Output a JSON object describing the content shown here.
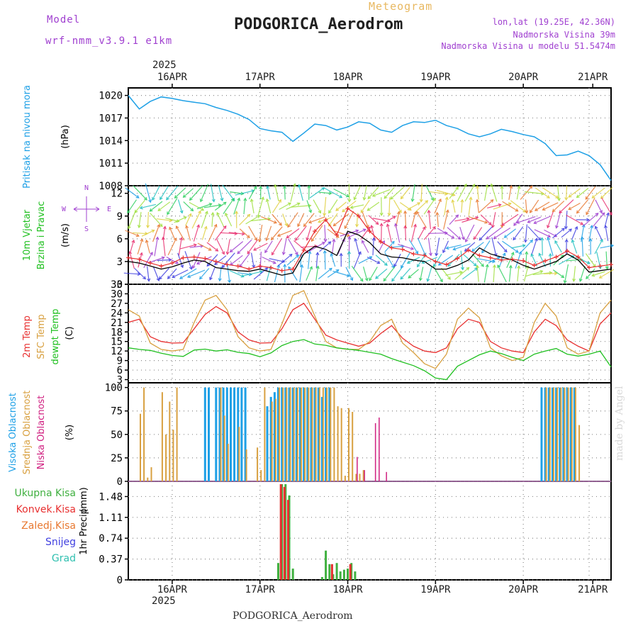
{
  "header": {
    "model_label": "Model",
    "model_name": "wrf-nmm_v3.9.1 e1km",
    "meteogram_label": "Meteogram",
    "station_title": "PODGORICA_Aerodrom",
    "lonlat": "lon,lat (19.25E, 42.36N)",
    "altitude": "Nadmorska Visina 39m",
    "model_altitude": "Nadmorska Visina u modelu 51.5474m",
    "year": "2025"
  },
  "footer": {
    "station": "PODGORICA_Aerodrom",
    "year": "2025",
    "madeby": "made by Angel"
  },
  "colors": {
    "pressure": "#1ea0e6",
    "wind_black": "#000000",
    "wind_red": "#e83030",
    "t2m": "#e83030",
    "sfc": "#d8a040",
    "dewpt": "#20c020",
    "high_cloud": "#1ea0e6",
    "mid_cloud": "#d8a040",
    "low_cloud": "#d02080",
    "total_rain": "#40b040",
    "conv_rain": "#e83030",
    "purple": "#a040d0",
    "grid": "#888888"
  },
  "chart_data": [
    {
      "type": "line",
      "panel": "pressure",
      "ylabel_name": "Pritisak na nivou mora",
      "ylabel_unit": "(hPa)",
      "yticks": [
        1008,
        1011,
        1014,
        1017,
        1020
      ],
      "ylim": [
        1008,
        1021
      ],
      "xlabels": [
        "16APR",
        "17APR",
        "18APR",
        "19APR",
        "20APR",
        "21APR"
      ],
      "xlim": [
        0,
        132
      ],
      "x": [
        0,
        3,
        6,
        9,
        12,
        15,
        18,
        21,
        24,
        27,
        30,
        33,
        36,
        39,
        42,
        45,
        48,
        51,
        54,
        57,
        60,
        63,
        66,
        69,
        72,
        75,
        78,
        81,
        84,
        87,
        90,
        93,
        96,
        99,
        102,
        105,
        108,
        111,
        114,
        117,
        120,
        123,
        126,
        129,
        132
      ],
      "series": [
        {
          "name": "",
          "values": [
            1020.0,
            1018.2,
            1019.2,
            1019.8,
            1019.6,
            1019.3,
            1019.1,
            1018.9,
            1018.4,
            1018.0,
            1017.5,
            1016.8,
            1015.6,
            1015.3,
            1015.1,
            1013.9,
            1015.0,
            1016.2,
            1016.0,
            1015.4,
            1015.8,
            1016.5,
            1016.3,
            1015.4,
            1015.1,
            1016.0,
            1016.5,
            1016.4,
            1016.7,
            1016.0,
            1015.6,
            1014.9,
            1014.5,
            1014.9,
            1015.5,
            1015.2,
            1014.8,
            1014.5,
            1013.6,
            1012.0,
            1012.1,
            1012.6,
            1012.0,
            1010.8,
            1008.7
          ]
        }
      ]
    },
    {
      "type": "line",
      "panel": "wind",
      "ylabel_name": "10m Vjetar",
      "ylabel_name2": "Brzina i Pravac",
      "ylabel_unit": "(m/s)",
      "compass_n": "N",
      "compass_s": "S",
      "compass_w": "W",
      "compass_e": "E",
      "yticks": [
        0,
        3,
        6,
        9,
        12
      ],
      "ylim": [
        0,
        13
      ],
      "xlim": [
        0,
        132
      ],
      "x": [
        0,
        3,
        6,
        9,
        12,
        15,
        18,
        21,
        24,
        27,
        30,
        33,
        36,
        39,
        42,
        45,
        48,
        51,
        54,
        57,
        60,
        63,
        66,
        69,
        72,
        75,
        78,
        81,
        84,
        87,
        90,
        93,
        96,
        99,
        102,
        105,
        108,
        111,
        114,
        117,
        120,
        123,
        126,
        129,
        132
      ],
      "series": [
        {
          "name": "",
          "values": [
            3.0,
            2.8,
            2.4,
            2.0,
            2.3,
            2.8,
            3.2,
            3.0,
            2.2,
            2.0,
            1.8,
            1.7,
            2.0,
            1.6,
            1.2,
            1.5,
            4.0,
            5.0,
            4.6,
            3.8,
            7.0,
            6.5,
            5.5,
            4.0,
            3.6,
            3.5,
            3.2,
            3.0,
            2.0,
            2.0,
            2.5,
            3.2,
            4.8,
            4.0,
            3.6,
            3.2,
            2.5,
            2.0,
            2.5,
            3.0,
            4.0,
            3.2,
            1.6,
            1.8,
            2.0
          ]
        },
        {
          "name": "",
          "values": [
            3.5,
            3.3,
            2.8,
            2.4,
            2.8,
            3.5,
            3.6,
            3.4,
            3.0,
            2.6,
            2.4,
            2.0,
            2.4,
            2.2,
            1.8,
            2.0,
            4.5,
            7.0,
            8.5,
            6.5,
            10.0,
            9.0,
            7.0,
            5.6,
            4.8,
            4.6,
            4.0,
            3.8,
            3.0,
            2.6,
            3.4,
            4.5,
            3.8,
            3.5,
            3.2,
            3.3,
            3.1,
            2.5,
            3.1,
            3.6,
            4.4,
            3.6,
            2.2,
            2.4,
            2.6
          ]
        }
      ]
    },
    {
      "type": "line",
      "panel": "temperature",
      "ylabel_name": "2m Temp",
      "ylabel_name2": "SFC Temp",
      "ylabel_name3": "dewpt Temp",
      "ylabel_unit": "(C)",
      "yticks": [
        3,
        6,
        9,
        12,
        15,
        18,
        21,
        24,
        27,
        30,
        33
      ],
      "ylim": [
        2,
        33
      ],
      "xlim": [
        0,
        132
      ],
      "x": [
        0,
        3,
        6,
        9,
        12,
        15,
        18,
        21,
        24,
        27,
        30,
        33,
        36,
        39,
        42,
        45,
        48,
        51,
        54,
        57,
        60,
        63,
        66,
        69,
        72,
        75,
        78,
        81,
        84,
        87,
        90,
        93,
        96,
        99,
        102,
        105,
        108,
        111,
        114,
        117,
        120,
        123,
        126,
        129,
        132
      ],
      "series": [
        {
          "name": "2m Temp",
          "values": [
            21.0,
            22.0,
            16.5,
            15.0,
            14.5,
            14.6,
            19.0,
            23.5,
            26.0,
            24.0,
            18.0,
            15.5,
            14.5,
            14.6,
            19.0,
            25.0,
            27.0,
            22.0,
            17.0,
            15.5,
            14.5,
            13.5,
            14.5,
            17.5,
            20.0,
            16.0,
            13.5,
            12.0,
            11.5,
            13.0,
            19.0,
            22.0,
            21.0,
            15.0,
            13.0,
            12.0,
            11.5,
            18.0,
            22.0,
            20.0,
            15.5,
            13.5,
            12.0,
            20.5,
            24.0
          ]
        },
        {
          "name": "SFC Temp",
          "values": [
            25.0,
            23.0,
            14.5,
            12.5,
            12.0,
            12.5,
            21.0,
            28.0,
            29.5,
            25.0,
            16.5,
            13.0,
            12.0,
            12.5,
            20.5,
            29.5,
            31.0,
            23.0,
            15.0,
            13.0,
            12.5,
            12.5,
            15.0,
            20.0,
            22.0,
            14.5,
            11.5,
            8.0,
            6.5,
            11.0,
            22.0,
            25.5,
            22.5,
            13.0,
            10.5,
            9.0,
            10.0,
            21.0,
            27.0,
            23.0,
            13.0,
            11.0,
            12.0,
            24.0,
            28.0
          ]
        },
        {
          "name": "dewpt Temp",
          "values": [
            13.0,
            12.5,
            12.2,
            11.3,
            10.6,
            10.3,
            12.3,
            12.6,
            12.0,
            12.4,
            11.6,
            11.2,
            10.2,
            11.4,
            13.7,
            15.0,
            15.6,
            14.2,
            13.8,
            13.0,
            12.6,
            12.2,
            11.6,
            11.0,
            9.6,
            8.5,
            7.4,
            5.8,
            3.5,
            3.0,
            7.2,
            9.0,
            10.8,
            12.0,
            11.2,
            10.0,
            9.0,
            11.0,
            12.0,
            12.8,
            11.0,
            10.4,
            11.0,
            12.0,
            7.0
          ]
        }
      ]
    },
    {
      "type": "bar",
      "panel": "cloud",
      "ylabel_name": "Visoka Oblacnost",
      "ylabel_name2": "Srednja Oblacnost",
      "ylabel_name3": "Niska Oblacnost",
      "ylabel_unit": "(%)",
      "yticks": [
        0,
        25,
        50,
        75,
        100
      ],
      "ylim": [
        0,
        105
      ],
      "xlim": [
        0,
        132
      ],
      "series": [
        {
          "name": "Visoka Oblacnost",
          "x": [
            21,
            22,
            24,
            25,
            26,
            27,
            28,
            29,
            30,
            31,
            32,
            38,
            39,
            40,
            41,
            42,
            43,
            44,
            45,
            46,
            47,
            48,
            49,
            50,
            51,
            52,
            53,
            54,
            55,
            113,
            114,
            115,
            116,
            117,
            118,
            119,
            120,
            121,
            122
          ],
          "values": [
            100,
            100,
            100,
            100,
            100,
            100,
            100,
            100,
            100,
            100,
            100,
            80,
            90,
            95,
            100,
            100,
            100,
            100,
            100,
            100,
            100,
            100,
            100,
            100,
            100,
            100,
            90,
            100,
            100,
            100,
            100,
            100,
            100,
            100,
            100,
            100,
            100,
            100,
            100
          ]
        },
        {
          "name": "Srednja Oblacnost",
          "x": [
            3,
            4,
            5,
            6,
            9,
            10,
            11,
            12,
            13,
            25,
            26,
            27,
            30,
            32,
            35,
            36,
            37,
            39,
            40,
            41,
            42,
            43,
            44,
            45,
            46,
            47,
            48,
            49,
            50,
            51,
            52,
            53,
            54,
            55,
            56,
            57,
            58,
            59,
            60,
            61,
            62,
            63,
            64,
            114,
            115,
            116,
            117,
            118,
            119,
            120,
            121,
            122,
            123
          ],
          "values": [
            72,
            100,
            4,
            15,
            95,
            50,
            85,
            55,
            100,
            100,
            70,
            40,
            58,
            34,
            36,
            12,
            100,
            85,
            88,
            100,
            100,
            100,
            100,
            100,
            100,
            100,
            100,
            100,
            100,
            100,
            100,
            100,
            100,
            100,
            100,
            80,
            78,
            6,
            78,
            74,
            8,
            8,
            12,
            100,
            100,
            100,
            100,
            100,
            100,
            100,
            100,
            100,
            60
          ]
        },
        {
          "name": "Niska Oblacnost",
          "x": [
            62,
            64,
            67,
            68,
            70
          ],
          "values": [
            26,
            12,
            62,
            68,
            10
          ]
        }
      ]
    },
    {
      "type": "bar",
      "panel": "precip",
      "ylabel_name": "1hr Precip",
      "ylabel_unit": "(mm)",
      "legend": [
        "Ukupna Kisa",
        "Konvek.Kisa",
        "Zaledj.Kisa",
        "Snijeg",
        "Grad"
      ],
      "yticks": [
        0,
        0.37,
        0.74,
        1.11,
        1.48
      ],
      "ylim": [
        0,
        1.75
      ],
      "xlim": [
        0,
        132
      ],
      "series": [
        {
          "name": "Ukupna Kisa",
          "x": [
            41,
            42,
            43,
            44,
            45,
            53,
            54,
            55,
            56,
            57,
            58,
            59,
            60,
            61,
            62
          ],
          "values": [
            0.3,
            1.7,
            1.7,
            1.5,
            0.2,
            0.05,
            0.52,
            0.28,
            0.1,
            0.3,
            0.15,
            0.18,
            0.2,
            0.3,
            0.15
          ]
        },
        {
          "name": "Konvek.Kisa",
          "x": [
            42,
            43,
            44,
            56,
            61
          ],
          "values": [
            1.7,
            1.65,
            1.42,
            0.28,
            0.28
          ]
        }
      ]
    }
  ],
  "panel_labels": {
    "p1": [
      "Pritisak na nivou mora",
      "(hPa)"
    ],
    "p2": [
      "10m Vjetar",
      "Brzina i Pravac",
      "(m/s)"
    ],
    "p3": [
      "2m Temp",
      "SFC Temp",
      "dewpt Temp",
      "(C)"
    ],
    "p4": [
      "Visoka Oblacnost",
      "Srednja Oblacnost",
      "Niska Oblacnost",
      "(%)"
    ],
    "p5": [
      "1hr Precip",
      "(mm)"
    ]
  },
  "precip_legend": [
    "Ukupna Kisa",
    "Konvek.Kisa",
    "Zaledj.Kisa",
    "Snijeg",
    "Grad"
  ],
  "precip_legend_colors": [
    "#40b040",
    "#e83030",
    "#e87830",
    "#4040e0",
    "#30c0b0"
  ]
}
